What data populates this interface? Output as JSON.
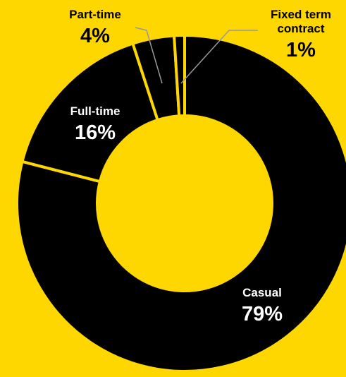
{
  "chart_data": {
    "type": "pie",
    "variant": "donut",
    "categories": [
      "Casual",
      "Full-time",
      "Part-time",
      "Fixed term contract"
    ],
    "values": [
      79,
      16,
      4,
      1
    ],
    "value_labels": [
      "79%",
      "16%",
      "4%",
      "1%"
    ],
    "label_lines": [
      [
        "Casual"
      ],
      [
        "Full-time"
      ],
      [
        "Part-time"
      ],
      [
        "Fixed term",
        "contract"
      ]
    ],
    "title": "",
    "legend": "none",
    "colors": {
      "background": "#FFD700",
      "slice": "#000000",
      "separator": "#FFD700",
      "label_inside": "#FFFFFF",
      "label_outside": "#000000",
      "leader_line": "#999999"
    }
  }
}
